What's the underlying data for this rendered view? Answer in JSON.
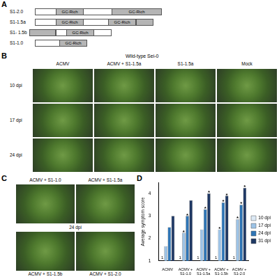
{
  "panel_a": {
    "letter": "A",
    "constructs": [
      {
        "label": "S1-2.0",
        "segments": [
          "GC-Rich",
          "GC-Rich"
        ]
      },
      {
        "label": "S1-1.5a",
        "segments": [
          "GC-Rich",
          "GC-Rich"
        ]
      },
      {
        "label": "S1- 1.5b",
        "segments": [
          "GC-Rich"
        ]
      },
      {
        "label": "S1-1.0",
        "segments": [
          "GC-Rich"
        ]
      }
    ]
  },
  "panel_b": {
    "letter": "B",
    "title": "Wild-type Sei-0",
    "columns": [
      "ACMV",
      "ACMV + S1-1.5a",
      "S1-1.5a",
      "Mock"
    ],
    "rows": [
      "10 dpi",
      "17 dpi",
      "24 dpi"
    ]
  },
  "panel_c": {
    "letter": "C",
    "images": [
      "ACMV + S1-1.0",
      "ACMV + S1-1.5a",
      "ACMV + S1-1.5b",
      "ACMV + S1-2.0"
    ],
    "time": "24 dpi"
  },
  "panel_d": {
    "letter": "D"
  },
  "chart_data": {
    "type": "bar",
    "y_label": "Average symptom score",
    "categories": [
      "ACMV",
      "ACMV + S1-1.0",
      "ACMV + S1-1.5a",
      "ACMV + S1-1.5b",
      "ACMV + S1-2.0"
    ],
    "series": [
      {
        "name": "10 dpi",
        "color": "#dce9f5",
        "values": [
          1,
          1,
          1,
          1,
          1
        ],
        "data_labels": true
      },
      {
        "name": "17 dpi",
        "color": "#9dc3e6",
        "values": [
          1.65,
          2.25,
          2.4,
          2.4,
          2.85
        ],
        "value_marks": [
          null,
          "*",
          null,
          "*",
          "*"
        ]
      },
      {
        "name": "24 dpi",
        "color": "#2e75b6",
        "values": [
          2.5,
          3.0,
          3.3,
          3.6,
          3.5
        ],
        "value_marks": [
          null,
          "*",
          "*",
          "*",
          "*"
        ]
      },
      {
        "name": "31 dpi",
        "color": "#1f3864",
        "values": [
          3.0,
          3.7,
          4.0,
          3.9,
          4.25
        ],
        "value_marks": [
          null,
          null,
          "*",
          "*",
          "*"
        ]
      }
    ],
    "ylim": [
      1,
      4.5
    ],
    "yticks": [
      1,
      2,
      3,
      4
    ],
    "grid": false,
    "legend": "right"
  }
}
